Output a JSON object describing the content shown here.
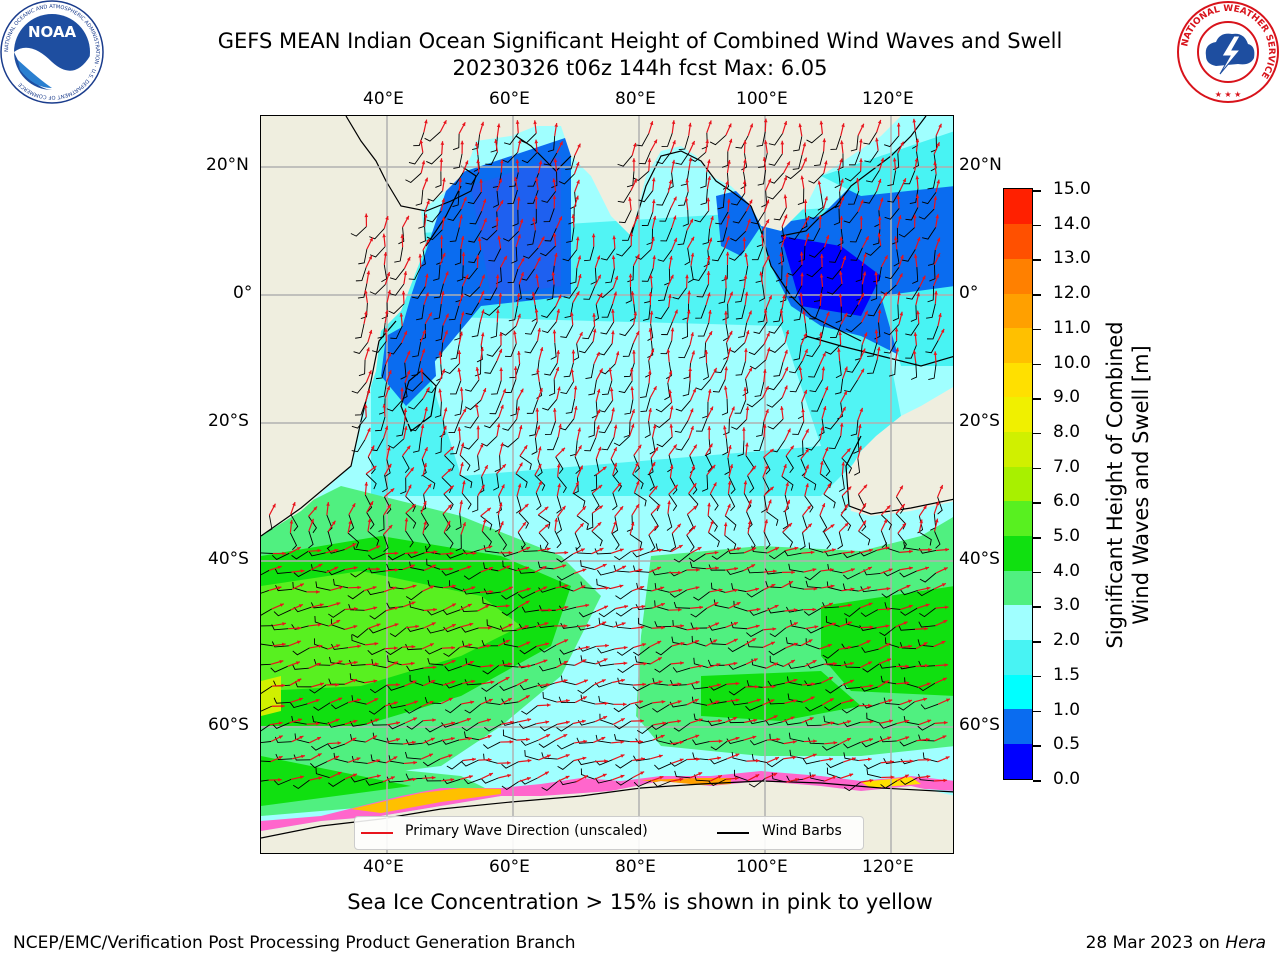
{
  "header": {
    "title_line1": "GEFS MEAN Indian Ocean Significant Height of Combined Wind Waves and Swell",
    "title_line2": "20230326 t06z 144h fcst   Max: 6.05"
  },
  "logos": {
    "noaa_text": "NOAA",
    "noaa_ring_text": "NATIONAL OCEANIC AND ATMOSPHERIC ADMINISTRATION · U.S. DEPARTMENT OF COMMERCE",
    "nws_ring_text": "NATIONAL WEATHER SERVICE"
  },
  "map": {
    "lon_labels": [
      "40°E",
      "60°E",
      "80°E",
      "100°E",
      "120°E"
    ],
    "lat_labels": [
      "20°N",
      "0°",
      "20°S",
      "40°S",
      "60°S"
    ],
    "extent": {
      "lon_min": 20,
      "lon_max": 130,
      "lat_min": -74,
      "lat_max": 28
    },
    "legend": {
      "wave_direction": "Primary Wave Direction (unscaled)",
      "wind_barbs": "Wind Barbs"
    },
    "colors": {
      "land": "#efeedf",
      "wave_arrows": "#e8141c",
      "wind_barbs": "#000000",
      "grid": "#b0b0b0"
    }
  },
  "colorbar": {
    "label": "Significant Height of Combined\nWind Waves and Swell [m]",
    "ticks": [
      "0.0",
      "0.5",
      "1.0",
      "1.5",
      "2.0",
      "3.0",
      "4.0",
      "5.0",
      "6.0",
      "7.0",
      "8.0",
      "9.0",
      "10.0",
      "11.0",
      "12.0",
      "13.0",
      "14.0",
      "15.0"
    ],
    "colors": [
      "#0000ff",
      "#0a6cf0",
      "#00ffff",
      "#48f3f3",
      "#a0ffff",
      "#50f080",
      "#10e010",
      "#58f020",
      "#a8f000",
      "#d0f000",
      "#f0f000",
      "#ffe000",
      "#ffc000",
      "#ffa000",
      "#ff8000",
      "#ff5000",
      "#ff2000"
    ]
  },
  "footer": {
    "subtitle": "Sea Ice Concentration > 15% is shown in pink to yellow",
    "left": "NCEP/EMC/Verification Post Processing Product Generation Branch",
    "right_date": "28 Mar 2023 on ",
    "right_host": "Hera"
  }
}
